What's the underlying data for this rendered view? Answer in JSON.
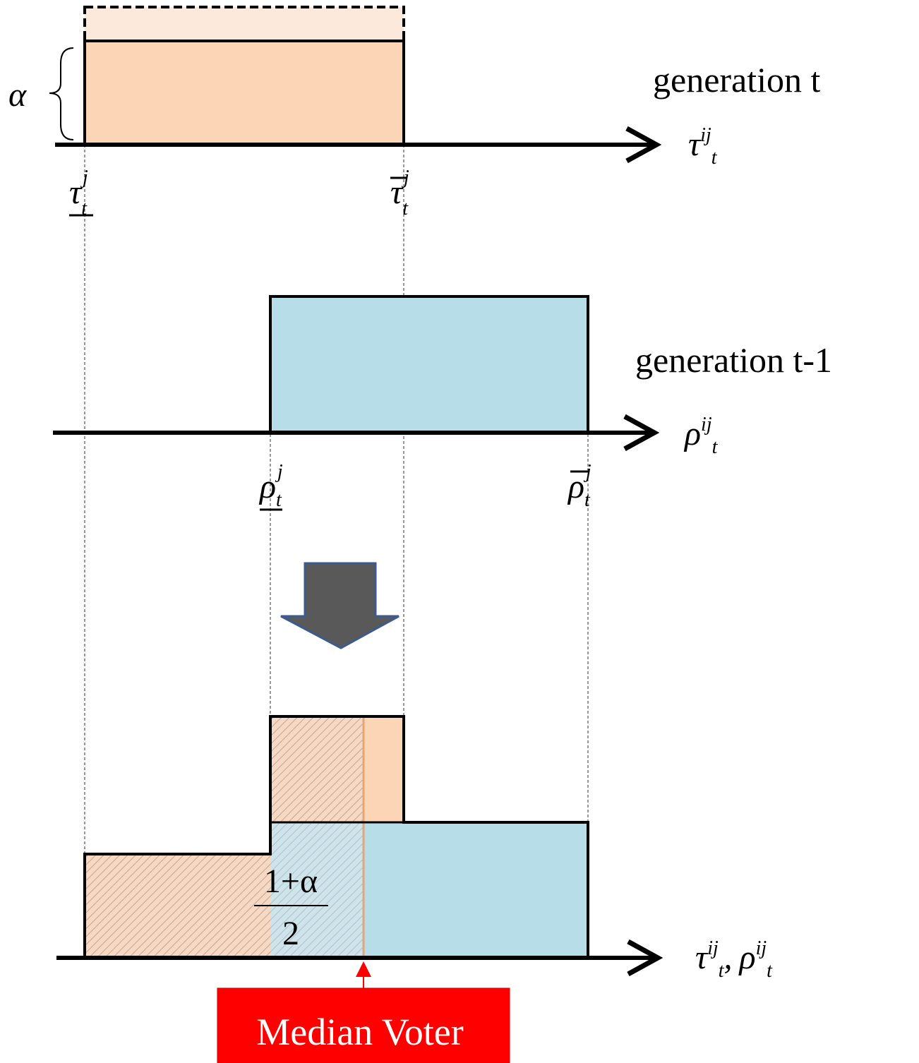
{
  "alpha_label": "α",
  "panels": [
    {
      "label": "generation t",
      "axis": {
        "symbol": "τ",
        "sup": "ij",
        "sub": "t"
      },
      "lower_bound": {
        "symbol": "τ",
        "sup": "j",
        "sub": "t"
      },
      "upper_bound": {
        "symbol": "τ",
        "sup": "j",
        "sub": "t"
      }
    },
    {
      "label": "generation t-1",
      "axis": {
        "symbol": "ρ",
        "sup": "ij",
        "sub": "t"
      },
      "lower_bound": {
        "symbol": "ρ",
        "sup": "j",
        "sub": "t"
      },
      "upper_bound": {
        "symbol": "ρ",
        "sup": "j",
        "sub": "t"
      }
    }
  ],
  "combined_axis": {
    "first": {
      "symbol": "τ",
      "sup": "ij",
      "sub": "t"
    },
    "separator": ",",
    "second": {
      "symbol": "ρ",
      "sup": "ij",
      "sub": "t"
    }
  },
  "fraction": {
    "numerator": "1+α",
    "denominator": "2"
  },
  "median_label": "Median Voter"
}
